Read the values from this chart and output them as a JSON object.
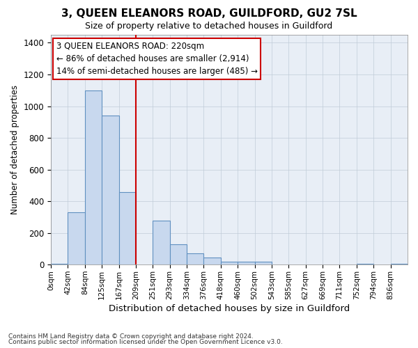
{
  "title": "3, QUEEN ELEANORS ROAD, GUILDFORD, GU2 7SL",
  "subtitle": "Size of property relative to detached houses in Guildford",
  "xlabel": "Distribution of detached houses by size in Guildford",
  "ylabel": "Number of detached properties",
  "footer_line1": "Contains HM Land Registry data © Crown copyright and database right 2024.",
  "footer_line2": "Contains public sector information licensed under the Open Government Licence v3.0.",
  "bin_labels": [
    "0sqm",
    "42sqm",
    "84sqm",
    "125sqm",
    "167sqm",
    "209sqm",
    "251sqm",
    "293sqm",
    "334sqm",
    "376sqm",
    "418sqm",
    "460sqm",
    "502sqm",
    "543sqm",
    "585sqm",
    "627sqm",
    "669sqm",
    "711sqm",
    "752sqm",
    "794sqm",
    "836sqm"
  ],
  "bar_values": [
    5,
    330,
    1100,
    940,
    460,
    0,
    280,
    130,
    70,
    45,
    20,
    20,
    20,
    0,
    0,
    0,
    0,
    0,
    5,
    0,
    5
  ],
  "bar_color": "#c8d8ee",
  "bar_edge_color": "#6090c0",
  "property_line_color": "#cc0000",
  "property_line_bin": 5,
  "ylim": [
    0,
    1450
  ],
  "yticks": [
    0,
    200,
    400,
    600,
    800,
    1000,
    1200,
    1400
  ],
  "annotation_line1": "3 QUEEN ELEANORS ROAD: 220sqm",
  "annotation_line2": "← 86% of detached houses are smaller (2,914)",
  "annotation_line3": "14% of semi-detached houses are larger (485) →",
  "annotation_box_color": "#ffffff",
  "annotation_edge_color": "#cc0000",
  "figure_bg": "#ffffff",
  "plot_bg": "#e8eef6",
  "grid_color": "#c0ccd8"
}
